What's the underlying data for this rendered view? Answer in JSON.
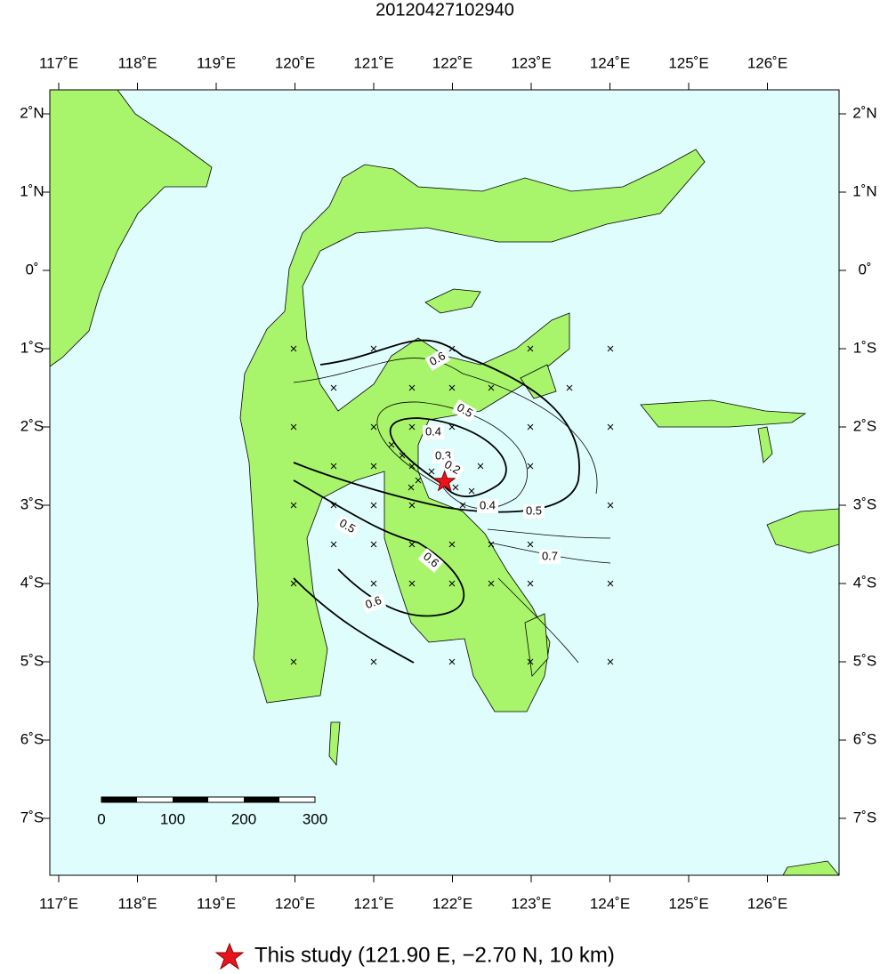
{
  "title": "20120427102940",
  "map": {
    "xticks": [
      {
        "value": 117,
        "label": "117˚E"
      },
      {
        "value": 118,
        "label": "118˚E"
      },
      {
        "value": 119,
        "label": "119˚E"
      },
      {
        "value": 120,
        "label": "120˚E"
      },
      {
        "value": 121,
        "label": "121˚E"
      },
      {
        "value": 122,
        "label": "122˚E"
      },
      {
        "value": 123,
        "label": "123˚E"
      },
      {
        "value": 124,
        "label": "124˚E"
      },
      {
        "value": 125,
        "label": "125˚E"
      },
      {
        "value": 126,
        "label": "126˚E"
      }
    ],
    "yticks": [
      {
        "value": 2,
        "label": "2˚N"
      },
      {
        "value": 1,
        "label": "1˚N"
      },
      {
        "value": 0,
        "label": "0˚"
      },
      {
        "value": -1,
        "label": "1˚S"
      },
      {
        "value": -2,
        "label": "2˚S"
      },
      {
        "value": -3,
        "label": "3˚S"
      },
      {
        "value": -4,
        "label": "4˚S"
      },
      {
        "value": -5,
        "label": "5˚S"
      },
      {
        "value": -6,
        "label": "6˚S"
      },
      {
        "value": -7,
        "label": "7˚S"
      }
    ],
    "contour_labels": [
      0.6,
      0.5,
      0.4,
      0.3,
      0.2,
      0.4,
      0.5,
      0.5,
      0.6,
      0.7,
      0.6
    ],
    "scale_labels": [
      0,
      100,
      200,
      300
    ],
    "epicenter": {
      "lon": 121.9,
      "lat": -2.7
    }
  },
  "legend": {
    "label": "This study (121.90 E, −2.70 N, 10 km)"
  }
}
